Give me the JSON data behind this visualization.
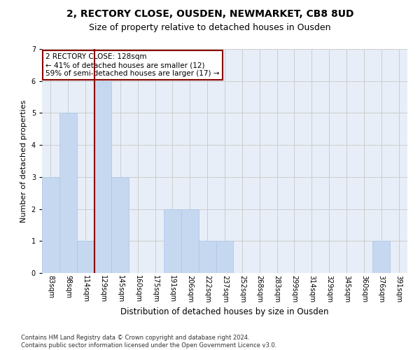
{
  "title1": "2, RECTORY CLOSE, OUSDEN, NEWMARKET, CB8 8UD",
  "title2": "Size of property relative to detached houses in Ousden",
  "xlabel": "Distribution of detached houses by size in Ousden",
  "ylabel": "Number of detached properties",
  "categories": [
    "83sqm",
    "98sqm",
    "114sqm",
    "129sqm",
    "145sqm",
    "160sqm",
    "175sqm",
    "191sqm",
    "206sqm",
    "222sqm",
    "237sqm",
    "252sqm",
    "268sqm",
    "283sqm",
    "299sqm",
    "314sqm",
    "329sqm",
    "345sqm",
    "360sqm",
    "376sqm",
    "391sqm"
  ],
  "values": [
    3,
    5,
    1,
    6,
    3,
    0,
    0,
    2,
    2,
    1,
    1,
    0,
    0,
    0,
    0,
    0,
    0,
    0,
    0,
    1,
    0
  ],
  "bar_color": "#c5d8f0",
  "bar_edgecolor": "#aac4e8",
  "vline_color": "#8b0000",
  "annotation_text": "2 RECTORY CLOSE: 128sqm\n← 41% of detached houses are smaller (12)\n59% of semi-detached houses are larger (17) →",
  "annotation_box_edgecolor": "#8b0000",
  "ylim": [
    0,
    7
  ],
  "yticks": [
    0,
    1,
    2,
    3,
    4,
    5,
    6,
    7
  ],
  "grid_color": "#cccccc",
  "bg_color": "#e8eef8",
  "footer": "Contains HM Land Registry data © Crown copyright and database right 2024.\nContains public sector information licensed under the Open Government Licence v3.0.",
  "title1_fontsize": 10,
  "title2_fontsize": 9,
  "xlabel_fontsize": 8.5,
  "ylabel_fontsize": 8,
  "tick_fontsize": 7,
  "annotation_fontsize": 7.5,
  "footer_fontsize": 6
}
